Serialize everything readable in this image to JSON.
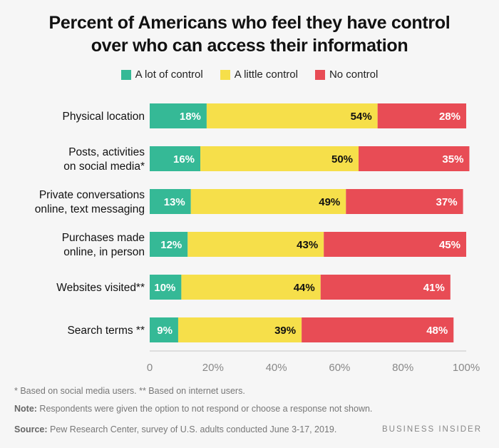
{
  "title_lines": [
    "Percent of Americans who feel they have control",
    "over who can access their information"
  ],
  "chart_data": {
    "type": "bar",
    "orientation": "horizontal",
    "stacked": true,
    "title": "Percent of Americans who feel they have control over who can access their information",
    "categories": [
      [
        "Physical location"
      ],
      [
        "Posts, activities",
        "on social media*"
      ],
      [
        "Private conversations",
        "online, text messaging"
      ],
      [
        "Purchases made",
        "online, in person"
      ],
      [
        "Websites visited**"
      ],
      [
        "Search terms **"
      ]
    ],
    "series": [
      {
        "name": "A lot of control",
        "color": "#35b996",
        "label_color": "#ffffff",
        "values": [
          18,
          16,
          13,
          12,
          10,
          9
        ]
      },
      {
        "name": "A little control",
        "color": "#f6df4a",
        "label_color": "#111111",
        "values": [
          54,
          50,
          49,
          43,
          44,
          39
        ]
      },
      {
        "name": "No control",
        "color": "#e84c55",
        "label_color": "#ffffff",
        "values": [
          28,
          35,
          37,
          45,
          41,
          48
        ]
      }
    ],
    "xlim": [
      0,
      100
    ],
    "xticks": [
      "0",
      "20%",
      "40%",
      "60%",
      "80%",
      "100%"
    ],
    "xlabel": "",
    "ylabel": "",
    "legend": "top-center",
    "grid": false
  },
  "footnotes": {
    "asterisks": "* Based on social media users. ** Based on internet users.",
    "note_label": "Note:",
    "note_text": " Respondents were given the option to not respond or choose a response not shown.",
    "source_label": "Source:",
    "source_text": " Pew Research Center, survey of U.S. adults conducted June 3-17, 2019."
  },
  "brand": "BUSINESS INSIDER"
}
